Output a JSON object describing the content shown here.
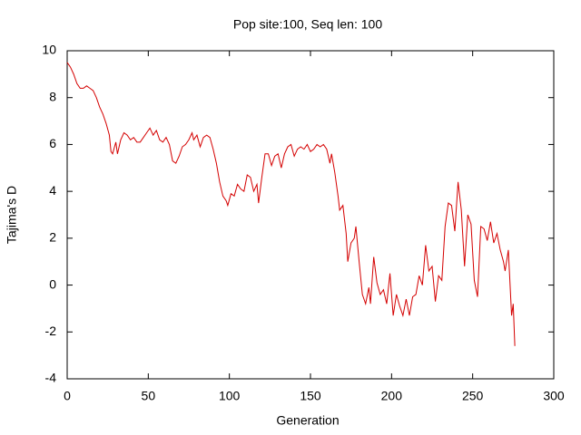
{
  "chart_data": {
    "type": "line",
    "title": "Pop site:100, Seq len: 100",
    "x_label": "Generation",
    "y_label": "Tajima's D",
    "xlim": [
      0,
      300
    ],
    "xticks": [
      0,
      50,
      100,
      150,
      200,
      250,
      300
    ],
    "ylim": [
      -4,
      10
    ],
    "yticks": [
      -4,
      -2,
      0,
      2,
      4,
      6,
      8,
      10
    ],
    "x": [
      0,
      2,
      4,
      6,
      8,
      10,
      12,
      14,
      16,
      18,
      20,
      22,
      24,
      26,
      27,
      28,
      30,
      31,
      33,
      35,
      37,
      39,
      41,
      43,
      45,
      47,
      49,
      51,
      53,
      55,
      57,
      59,
      61,
      63,
      65,
      67,
      69,
      71,
      73,
      75,
      77,
      78,
      80,
      82,
      84,
      86,
      88,
      90,
      92,
      94,
      96,
      98,
      99,
      101,
      103,
      105,
      107,
      109,
      111,
      113,
      115,
      117,
      118,
      120,
      122,
      124,
      126,
      128,
      130,
      132,
      134,
      136,
      138,
      140,
      142,
      144,
      146,
      148,
      150,
      152,
      154,
      156,
      158,
      160,
      162,
      163,
      165,
      167,
      168,
      170,
      172,
      173,
      175,
      177,
      178,
      180,
      182,
      184,
      186,
      187,
      189,
      191,
      193,
      195,
      197,
      199,
      201,
      203,
      205,
      207,
      209,
      211,
      213,
      215,
      217,
      219,
      221,
      223,
      225,
      227,
      229,
      231,
      233,
      235,
      237,
      239,
      241,
      243,
      245,
      247,
      249,
      251,
      253,
      255,
      257,
      259,
      261,
      263,
      265,
      267,
      269,
      270,
      272,
      274,
      275,
      276
    ],
    "series": [
      {
        "name": "Tajima's D",
        "color": "#d40000",
        "values": [
          9.5,
          9.3,
          9.0,
          8.6,
          8.4,
          8.4,
          8.5,
          8.4,
          8.3,
          8.0,
          7.6,
          7.3,
          6.9,
          6.4,
          5.7,
          5.6,
          6.1,
          5.6,
          6.2,
          6.5,
          6.4,
          6.2,
          6.3,
          6.1,
          6.1,
          6.3,
          6.5,
          6.7,
          6.4,
          6.6,
          6.2,
          6.1,
          6.3,
          6.0,
          5.3,
          5.2,
          5.5,
          5.9,
          6.0,
          6.2,
          6.5,
          6.2,
          6.4,
          5.9,
          6.3,
          6.4,
          6.3,
          5.8,
          5.2,
          4.4,
          3.8,
          3.6,
          3.4,
          3.9,
          3.8,
          4.3,
          4.1,
          4.0,
          4.7,
          4.6,
          4.0,
          4.3,
          3.5,
          4.6,
          5.6,
          5.6,
          5.1,
          5.5,
          5.6,
          5.0,
          5.6,
          5.9,
          6.0,
          5.5,
          5.8,
          5.9,
          5.8,
          6.0,
          5.7,
          5.8,
          6.0,
          5.9,
          6.0,
          5.8,
          5.2,
          5.6,
          4.8,
          3.8,
          3.2,
          3.4,
          2.2,
          1.0,
          1.8,
          2.0,
          2.5,
          1.0,
          -0.4,
          -0.8,
          -0.1,
          -0.8,
          1.2,
          0.1,
          -0.4,
          -0.2,
          -0.8,
          0.5,
          -1.3,
          -0.4,
          -0.9,
          -1.3,
          -0.6,
          -1.3,
          -0.5,
          -0.4,
          0.4,
          0.0,
          1.7,
          0.6,
          0.8,
          -0.7,
          0.4,
          0.2,
          2.5,
          3.5,
          3.4,
          2.3,
          4.4,
          3.2,
          0.8,
          3.0,
          2.6,
          0.2,
          -0.5,
          2.5,
          2.4,
          1.9,
          2.7,
          1.8,
          2.2,
          1.5,
          1.0,
          0.6,
          1.5,
          -1.3,
          -0.8,
          -2.6
        ]
      }
    ]
  }
}
